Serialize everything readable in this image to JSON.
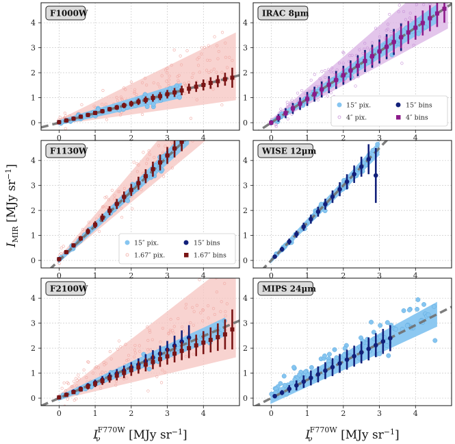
{
  "figure": {
    "ylabel_main": "I",
    "ylabel_sub": "MIR",
    "ylabel_units": " [MJy sr",
    "ylabel_exp": "−1",
    "ylabel_close": "]",
    "xlabel_main": "I",
    "xlabel_sub": "ν",
    "xlabel_sup": "F770W",
    "xlabel_units": " [MJy sr",
    "xlabel_exp": "−1",
    "xlabel_close": "]"
  },
  "colors": {
    "coarse_pix": "#86c5f0",
    "fine_pix": "#f6c4c0",
    "fine_pix_irac": "#d9b2e4",
    "coarse_bins": "#12207a",
    "fine_bins": "#7a1414",
    "fine_bins_irac": "#8c1a8a",
    "fit_line": "#707070",
    "label_box": "#dcdcdc"
  },
  "chart_data": [
    {
      "id": "f1000w",
      "type": "scatter",
      "title": "F1000W",
      "xlim": [
        -0.5,
        5
      ],
      "ylim": [
        -0.3,
        4.8
      ],
      "xticks": [
        "0",
        "1",
        "2",
        "3",
        "4"
      ],
      "yticks": [
        "0",
        "1",
        "2",
        "3",
        "4"
      ],
      "fit_slope": 0.38,
      "series": [
        {
          "name": "15″ bins",
          "x": [
            0.0,
            0.2,
            0.4,
            0.6,
            0.8,
            1.0,
            1.2,
            1.4,
            1.6,
            1.8,
            2.0,
            2.2,
            2.4,
            2.6,
            2.8,
            3.0,
            3.2
          ],
          "y": [
            0.02,
            0.09,
            0.16,
            0.24,
            0.31,
            0.39,
            0.46,
            0.54,
            0.61,
            0.69,
            0.76,
            0.84,
            0.91,
            0.99,
            1.06,
            1.14,
            1.21
          ],
          "err": [
            0.02,
            0.03,
            0.03,
            0.04,
            0.04,
            0.05,
            0.05,
            0.06,
            0.06,
            0.07,
            0.07,
            0.08,
            0.08,
            0.08,
            0.09,
            0.09,
            0.1
          ]
        },
        {
          "name": "1.67″ bins",
          "x": [
            0.0,
            0.2,
            0.4,
            0.6,
            0.8,
            1.0,
            1.2,
            1.4,
            1.6,
            1.8,
            2.0,
            2.2,
            2.4,
            2.6,
            2.8,
            3.0,
            3.2,
            3.4,
            3.6,
            3.8,
            4.0,
            4.2,
            4.4,
            4.6,
            4.8
          ],
          "y": [
            0.02,
            0.09,
            0.16,
            0.24,
            0.31,
            0.39,
            0.46,
            0.54,
            0.61,
            0.69,
            0.76,
            0.84,
            0.91,
            0.99,
            1.06,
            1.14,
            1.21,
            1.29,
            1.36,
            1.44,
            1.51,
            1.59,
            1.66,
            1.74,
            1.8
          ],
          "err": [
            0.02,
            0.03,
            0.04,
            0.05,
            0.06,
            0.07,
            0.08,
            0.09,
            0.1,
            0.11,
            0.12,
            0.13,
            0.14,
            0.15,
            0.16,
            0.17,
            0.18,
            0.19,
            0.2,
            0.21,
            0.22,
            0.23,
            0.24,
            0.26,
            0.4
          ]
        }
      ]
    },
    {
      "id": "irac",
      "type": "scatter",
      "title": "IRAC 8μm",
      "xlim": [
        -0.5,
        5
      ],
      "ylim": [
        -0.3,
        4.8
      ],
      "xticks": [
        "0",
        "1",
        "2",
        "3",
        "4"
      ],
      "yticks": [
        "0",
        "1",
        "2",
        "3",
        "4"
      ],
      "fit_slope": 0.95,
      "legend": {
        "position": "lower-right",
        "entries": [
          "15″ pix.",
          "15″ bins",
          "4″ pix.",
          "4″ bins"
        ]
      },
      "series": [
        {
          "name": "15″ bins",
          "x": [
            0.0,
            0.2,
            0.4,
            0.6,
            0.8,
            1.0,
            1.2,
            1.4,
            1.6,
            1.8,
            2.0,
            2.2,
            2.4,
            2.6,
            2.8,
            3.0,
            3.2,
            3.4,
            3.6
          ],
          "y": [
            0.0,
            0.19,
            0.38,
            0.57,
            0.76,
            0.95,
            1.14,
            1.33,
            1.52,
            1.71,
            1.9,
            2.09,
            2.28,
            2.47,
            2.66,
            2.85,
            3.04,
            3.23,
            3.42
          ],
          "err": [
            0.1,
            0.15,
            0.2,
            0.22,
            0.25,
            0.28,
            0.3,
            0.32,
            0.34,
            0.36,
            0.38,
            0.4,
            0.42,
            0.44,
            0.46,
            0.48,
            0.5,
            0.52,
            0.55
          ]
        },
        {
          "name": "4″ bins",
          "x": [
            0.0,
            0.2,
            0.4,
            0.6,
            0.8,
            1.0,
            1.2,
            1.4,
            1.6,
            1.8,
            2.0,
            2.2,
            2.4,
            2.6,
            2.8,
            3.0,
            3.2,
            3.4,
            3.6,
            3.8,
            4.0,
            4.2,
            4.4,
            4.6,
            4.8
          ],
          "y": [
            0.0,
            0.19,
            0.38,
            0.57,
            0.76,
            0.95,
            1.14,
            1.33,
            1.52,
            1.71,
            1.9,
            2.09,
            2.28,
            2.47,
            2.66,
            2.85,
            3.04,
            3.23,
            3.42,
            3.61,
            3.8,
            3.99,
            4.18,
            4.37,
            4.56
          ],
          "err": [
            0.08,
            0.1,
            0.12,
            0.14,
            0.16,
            0.18,
            0.2,
            0.22,
            0.24,
            0.26,
            0.28,
            0.3,
            0.32,
            0.34,
            0.36,
            0.38,
            0.4,
            0.42,
            0.44,
            0.46,
            0.48,
            0.5,
            0.52,
            0.54,
            0.56
          ]
        }
      ]
    },
    {
      "id": "f1130w",
      "type": "scatter",
      "title": "F1130W",
      "xlim": [
        -0.5,
        5
      ],
      "ylim": [
        -0.3,
        4.8
      ],
      "xticks": [
        "0",
        "1",
        "2",
        "3",
        "4"
      ],
      "yticks": [
        "0",
        "1",
        "2",
        "3",
        "4"
      ],
      "fit_slope": 1.38,
      "legend": {
        "position": "lower-right",
        "entries": [
          "15″ pix.",
          "15″ bins",
          "1.67″ pix.",
          "1.67″ bins"
        ]
      },
      "series": [
        {
          "name": "15″ bins",
          "x": [
            0.0,
            0.2,
            0.4,
            0.6,
            0.8,
            1.0,
            1.2,
            1.4,
            1.6,
            1.8,
            2.0,
            2.2,
            2.4,
            2.6,
            2.8,
            3.0,
            3.2,
            3.4
          ],
          "y": [
            0.05,
            0.33,
            0.6,
            0.88,
            1.16,
            1.43,
            1.71,
            1.99,
            2.26,
            2.54,
            2.82,
            3.09,
            3.37,
            3.65,
            3.92,
            4.2,
            4.48,
            4.75
          ],
          "err": [
            0.04,
            0.05,
            0.06,
            0.07,
            0.08,
            0.09,
            0.1,
            0.11,
            0.12,
            0.13,
            0.14,
            0.15,
            0.16,
            0.17,
            0.18,
            0.19,
            0.2,
            0.2
          ]
        },
        {
          "name": "1.67″ bins",
          "x": [
            0.0,
            0.2,
            0.4,
            0.6,
            0.8,
            1.0,
            1.2,
            1.4,
            1.6,
            1.8,
            2.0,
            2.2,
            2.4,
            2.6,
            2.8,
            3.0,
            3.2,
            3.4
          ],
          "y": [
            0.05,
            0.33,
            0.6,
            0.88,
            1.16,
            1.43,
            1.71,
            1.99,
            2.26,
            2.54,
            2.82,
            3.09,
            3.37,
            3.65,
            3.92,
            4.2,
            4.48,
            4.75
          ],
          "err": [
            0.05,
            0.06,
            0.08,
            0.1,
            0.12,
            0.14,
            0.16,
            0.18,
            0.2,
            0.22,
            0.24,
            0.26,
            0.28,
            0.3,
            0.32,
            0.34,
            0.36,
            0.38
          ]
        }
      ]
    },
    {
      "id": "wise",
      "type": "scatter",
      "title": "WISE 12μm",
      "xlim": [
        -0.5,
        5
      ],
      "ylim": [
        -0.3,
        4.8
      ],
      "xticks": [
        "0",
        "1",
        "2",
        "3",
        "4"
      ],
      "yticks": [
        "0",
        "1",
        "2",
        "3",
        "4"
      ],
      "fit_slope": 1.5,
      "series": [
        {
          "name": "15″ bins",
          "x": [
            0.1,
            0.3,
            0.5,
            0.7,
            0.9,
            1.1,
            1.3,
            1.5,
            1.7,
            1.9,
            2.1,
            2.3,
            2.5,
            2.7,
            2.9
          ],
          "y": [
            0.15,
            0.45,
            0.75,
            1.05,
            1.35,
            1.65,
            1.95,
            2.25,
            2.55,
            2.85,
            3.15,
            3.45,
            3.75,
            4.05,
            3.4
          ],
          "err": [
            0.08,
            0.1,
            0.12,
            0.14,
            0.16,
            0.18,
            0.2,
            0.22,
            0.25,
            0.28,
            0.3,
            0.35,
            0.4,
            0.6,
            1.1
          ]
        }
      ]
    },
    {
      "id": "f2100w",
      "type": "scatter",
      "title": "F2100W",
      "xlim": [
        -0.5,
        5
      ],
      "ylim": [
        -0.3,
        4.8
      ],
      "xticks": [
        "0",
        "1",
        "2",
        "3",
        "4"
      ],
      "yticks": [
        "0",
        "1",
        "2",
        "3",
        "4"
      ],
      "fit_slope": 0.62,
      "series": [
        {
          "name": "15″ bins",
          "x": [
            0.0,
            0.2,
            0.4,
            0.6,
            0.8,
            1.0,
            1.2,
            1.4,
            1.6,
            1.8,
            2.0,
            2.2,
            2.4,
            2.6,
            2.8,
            3.0,
            3.2,
            3.4,
            3.6
          ],
          "y": [
            0.03,
            0.14,
            0.26,
            0.38,
            0.5,
            0.62,
            0.74,
            0.86,
            0.98,
            1.1,
            1.22,
            1.34,
            1.48,
            1.62,
            1.78,
            1.94,
            2.1,
            2.26,
            2.42
          ],
          "err": [
            0.03,
            0.05,
            0.06,
            0.08,
            0.1,
            0.12,
            0.14,
            0.16,
            0.18,
            0.2,
            0.22,
            0.25,
            0.28,
            0.3,
            0.32,
            0.35,
            0.4,
            0.45,
            0.5
          ]
        },
        {
          "name": "1.67″ bins",
          "x": [
            0.0,
            0.2,
            0.4,
            0.6,
            0.8,
            1.0,
            1.2,
            1.4,
            1.6,
            1.8,
            2.0,
            2.2,
            2.4,
            2.6,
            2.8,
            3.0,
            3.2,
            3.4,
            3.6,
            3.8,
            4.0,
            4.2,
            4.4,
            4.6,
            4.8
          ],
          "y": [
            0.03,
            0.13,
            0.24,
            0.35,
            0.46,
            0.57,
            0.68,
            0.79,
            0.9,
            1.01,
            1.12,
            1.23,
            1.34,
            1.45,
            1.56,
            1.67,
            1.78,
            1.89,
            2.0,
            2.11,
            2.22,
            2.33,
            2.44,
            2.55,
            2.75
          ],
          "err": [
            0.03,
            0.05,
            0.07,
            0.09,
            0.11,
            0.13,
            0.15,
            0.17,
            0.19,
            0.21,
            0.23,
            0.25,
            0.27,
            0.29,
            0.31,
            0.33,
            0.35,
            0.37,
            0.4,
            0.43,
            0.46,
            0.5,
            0.55,
            0.6,
            0.8
          ]
        }
      ]
    },
    {
      "id": "mips",
      "type": "scatter",
      "title": "MIPS 24μm",
      "xlim": [
        -0.5,
        5
      ],
      "ylim": [
        -0.3,
        4.8
      ],
      "xticks": [
        "0",
        "1",
        "2",
        "3",
        "4"
      ],
      "yticks": [
        "0",
        "1",
        "2",
        "3",
        "4"
      ],
      "fit_slope": 0.73,
      "series": [
        {
          "name": "15″ bins",
          "x": [
            0.1,
            0.3,
            0.5,
            0.7,
            0.9,
            1.1,
            1.3,
            1.5,
            1.7,
            1.9,
            2.1,
            2.3,
            2.5,
            2.7,
            2.9,
            3.1,
            3.3
          ],
          "y": [
            0.08,
            0.22,
            0.37,
            0.51,
            0.66,
            0.81,
            0.95,
            1.1,
            1.24,
            1.39,
            1.54,
            1.68,
            1.83,
            1.97,
            2.12,
            2.27,
            2.4
          ],
          "err": [
            0.05,
            0.1,
            0.15,
            0.2,
            0.25,
            0.3,
            0.32,
            0.34,
            0.36,
            0.38,
            0.4,
            0.42,
            0.44,
            0.46,
            0.48,
            0.5,
            0.52
          ]
        }
      ]
    }
  ]
}
